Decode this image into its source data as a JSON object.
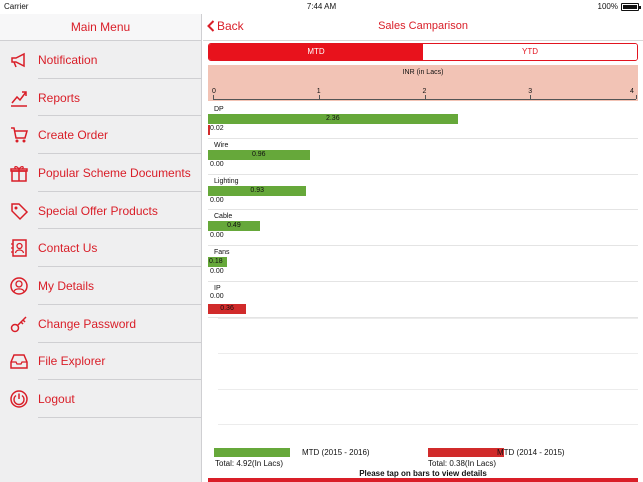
{
  "status": {
    "carrier": "Carrier",
    "time": "7:44 AM",
    "battery": "100%"
  },
  "sidebar": {
    "title": "Main Menu",
    "items": [
      {
        "label": "Notification",
        "icon": "megaphone-icon"
      },
      {
        "label": "Reports",
        "icon": "chart-icon"
      },
      {
        "label": "Create Order",
        "icon": "cart-icon"
      },
      {
        "label": "Popular Scheme Documents",
        "icon": "gift-icon"
      },
      {
        "label": "Special Offer Products",
        "icon": "tag-icon"
      },
      {
        "label": "Contact Us",
        "icon": "contacts-icon"
      },
      {
        "label": "My Details",
        "icon": "user-icon"
      },
      {
        "label": "Change Password",
        "icon": "key-icon"
      },
      {
        "label": "File Explorer",
        "icon": "inbox-icon"
      },
      {
        "label": "Logout",
        "icon": "power-icon"
      }
    ]
  },
  "nav": {
    "back_label": "Back",
    "title": "Sales Camparison"
  },
  "tabs": [
    {
      "label": "MTD",
      "active": true
    },
    {
      "label": "YTD",
      "active": false
    }
  ],
  "colors": {
    "accent": "#d91e28",
    "current": "#66a83a",
    "previous": "#d12b2b"
  },
  "chart_data": {
    "type": "bar",
    "orientation": "horizontal",
    "xlabel": "INR (in Lacs)",
    "xlim": [
      0,
      4
    ],
    "ticks": [
      "0",
      "1",
      "2",
      "3",
      "4"
    ],
    "categories": [
      "DP",
      "Wire",
      "Lighting",
      "Cable",
      "Fans",
      "IP"
    ],
    "series": [
      {
        "name": "MTD (2015 - 2016)",
        "values": [
          2.36,
          0.96,
          0.93,
          0.49,
          0.18,
          0.0
        ],
        "labels": [
          "2.36",
          "0.96",
          "0.93",
          "0.49",
          "0.18",
          "0.00"
        ]
      },
      {
        "name": "MTD (2014 - 2015)",
        "values": [
          0.02,
          0.0,
          0.0,
          0.0,
          0.0,
          0.36
        ],
        "labels": [
          "0.02",
          "0.00",
          "0.00",
          "0.00",
          "0.00",
          "0.36"
        ]
      }
    ]
  },
  "legend": [
    {
      "name": "MTD (2015 - 2016)",
      "total": "Total: 4.92(In Lacs)"
    },
    {
      "name": "MTD (2014 - 2015)",
      "total": "Total: 0.38(In Lacs)"
    }
  ],
  "footer_hint": "Please tap on bars to view details"
}
